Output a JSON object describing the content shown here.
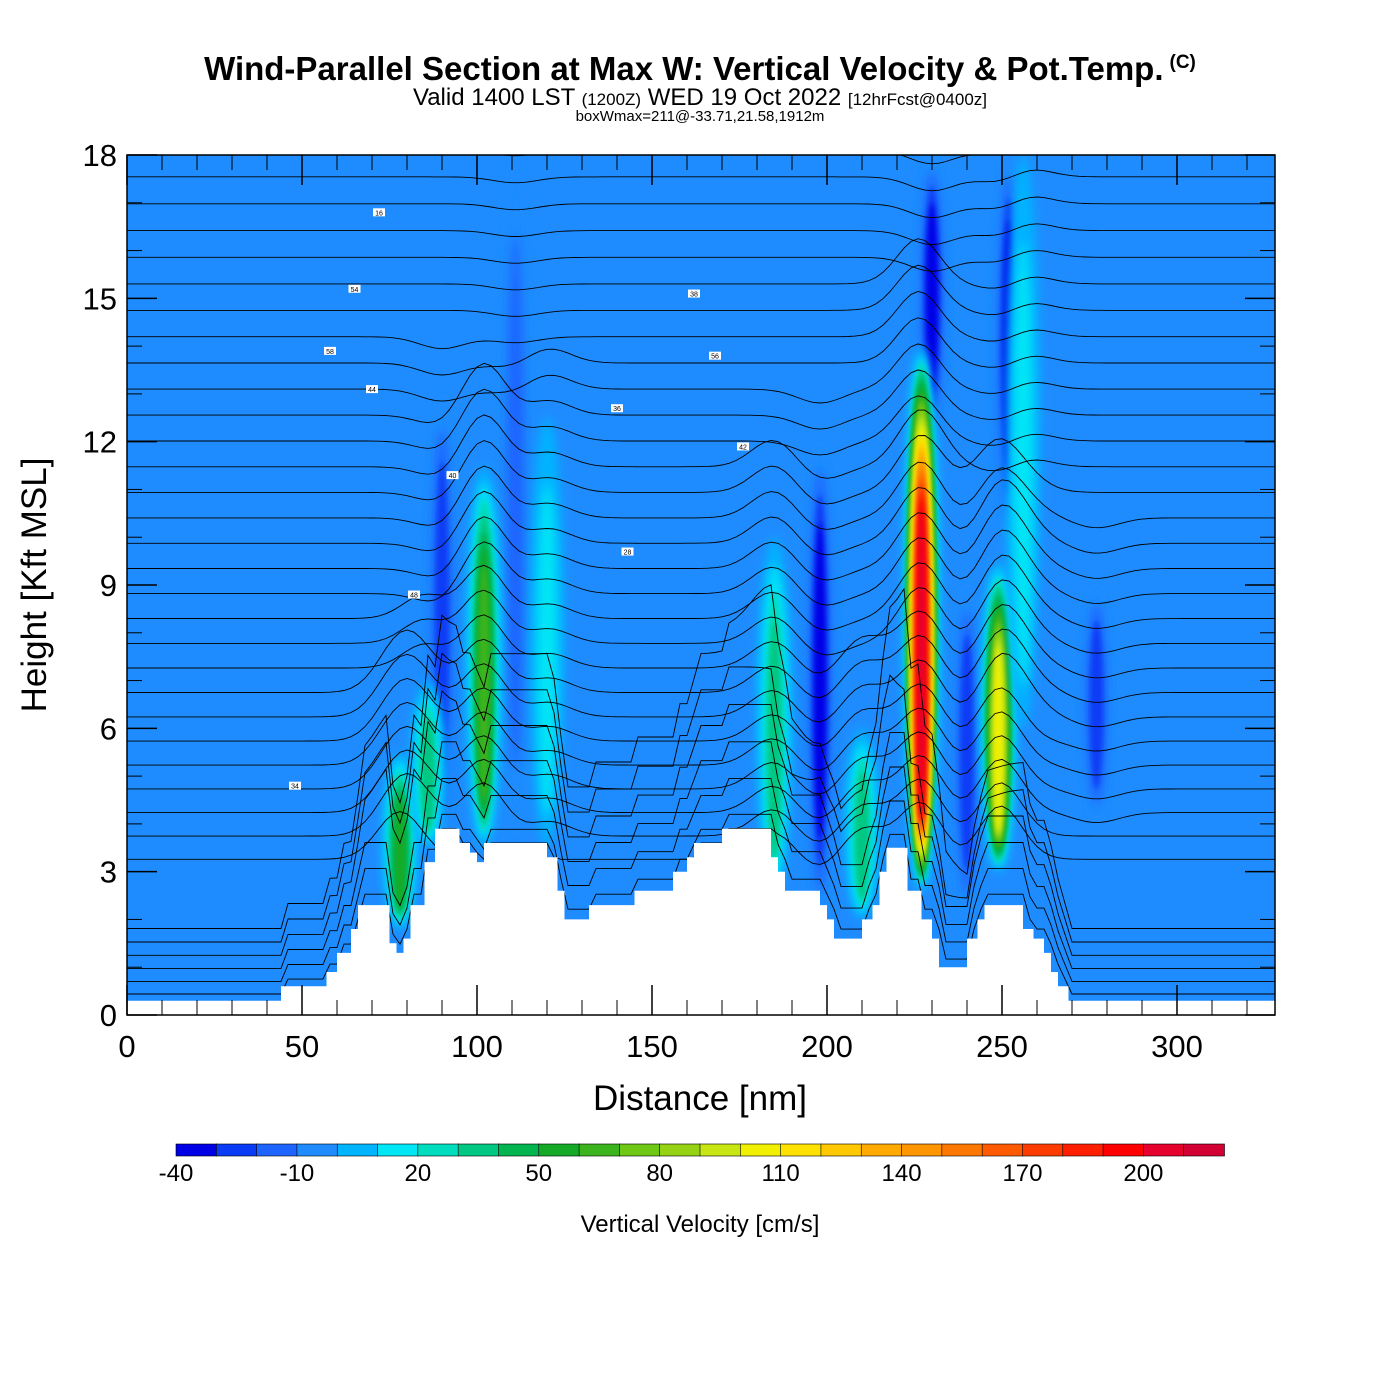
{
  "title": {
    "main": "Wind-Parallel Section at Max W: Vertical Velocity & Pot.Temp.",
    "copyright": "(C)",
    "valid_prefix": "Valid 1400 LST",
    "utc": "(1200Z)",
    "valid_date": "WED 19 Oct 2022",
    "forecast": "[12hrFcst@0400z]",
    "box_info": "boxWmax=211@-33.71,21.58,1912m"
  },
  "chart_data": {
    "type": "heatmap",
    "xlabel": "Distance [nm]",
    "ylabel": "Height [Kft MSL]",
    "xlim": [
      0,
      328
    ],
    "ylim": [
      0,
      18
    ],
    "x_ticks": [
      0,
      50,
      100,
      150,
      200,
      250,
      300
    ],
    "y_ticks": [
      0,
      3,
      6,
      9,
      12,
      15,
      18
    ],
    "colorbar": {
      "label": "Vertical Velocity [cm/s]",
      "ticks": [
        -40,
        -10,
        20,
        50,
        80,
        110,
        140,
        170,
        200
      ],
      "levels": [
        -40,
        -30,
        -20,
        -10,
        0,
        10,
        20,
        30,
        40,
        50,
        60,
        70,
        80,
        90,
        100,
        110,
        120,
        130,
        140,
        150,
        160,
        170,
        180,
        190,
        200,
        210,
        220
      ],
      "colors": [
        "#0000e6",
        "#0a3cf5",
        "#1e64ff",
        "#1e8cff",
        "#00b4ff",
        "#00e6f5",
        "#00dcbe",
        "#00c882",
        "#00b450",
        "#14aa28",
        "#3cb41e",
        "#6ec814",
        "#96d214",
        "#c8e614",
        "#f0f000",
        "#ffe100",
        "#ffc800",
        "#ffaa00",
        "#ff9600",
        "#ff7800",
        "#ff5a00",
        "#ff3c00",
        "#ff1e00",
        "#ff0000",
        "#e6002d",
        "#d20032"
      ]
    },
    "updrafts": [
      {
        "x": 78,
        "z_bottom": 1.8,
        "z_top": 5.5,
        "peak_w": 60
      },
      {
        "x": 86,
        "z_bottom": 3.5,
        "z_top": 7.0,
        "peak_w": 40
      },
      {
        "x": 102,
        "z_bottom": 3.5,
        "z_top": 11.5,
        "peak_w": 70
      },
      {
        "x": 120,
        "z_bottom": 3.5,
        "z_top": 12.5,
        "peak_w": 20
      },
      {
        "x": 185,
        "z_bottom": 2.5,
        "z_top": 10.0,
        "peak_w": 35
      },
      {
        "x": 210,
        "z_bottom": 2.0,
        "z_top": 6.0,
        "peak_w": 40
      },
      {
        "x": 227,
        "z_bottom": 2.6,
        "z_top": 14.0,
        "peak_w": 211
      },
      {
        "x": 249,
        "z_bottom": 3.0,
        "z_top": 9.5,
        "peak_w": 110
      },
      {
        "x": 256,
        "z_bottom": 6.0,
        "z_top": 18.0,
        "peak_w": 20
      }
    ],
    "downdrafts": [
      {
        "x": 90,
        "z_bottom": 3.5,
        "z_top": 13.0,
        "peak_w": -30
      },
      {
        "x": 111,
        "z_bottom": 3.5,
        "z_top": 18.0,
        "peak_w": -15
      },
      {
        "x": 198,
        "z_bottom": 2.0,
        "z_top": 12.0,
        "peak_w": -35
      },
      {
        "x": 230,
        "z_bottom": 12.0,
        "z_top": 18.0,
        "peak_w": -35
      },
      {
        "x": 240,
        "z_bottom": 2.0,
        "z_top": 9.0,
        "peak_w": -30
      },
      {
        "x": 252,
        "z_bottom": 10.0,
        "z_top": 18.0,
        "peak_w": -35
      },
      {
        "x": 277,
        "z_bottom": 4.0,
        "z_top": 9.0,
        "peak_w": -25
      }
    ],
    "terrain": [
      [
        0,
        0.3
      ],
      [
        43,
        0.3
      ],
      [
        44,
        0.6
      ],
      [
        55,
        0.6
      ],
      [
        57,
        0.9
      ],
      [
        60,
        1.3
      ],
      [
        64,
        1.8
      ],
      [
        66,
        2.3
      ],
      [
        72,
        2.3
      ],
      [
        75,
        1.5
      ],
      [
        77,
        1.3
      ],
      [
        79,
        1.6
      ],
      [
        81,
        2.3
      ],
      [
        85,
        3.2
      ],
      [
        88,
        3.9
      ],
      [
        91,
        3.9
      ],
      [
        95,
        3.6
      ],
      [
        98,
        3.4
      ],
      [
        100,
        3.2
      ],
      [
        102,
        3.6
      ],
      [
        118,
        3.6
      ],
      [
        120,
        3.3
      ],
      [
        123,
        2.6
      ],
      [
        125,
        2.0
      ],
      [
        130,
        2.0
      ],
      [
        132,
        2.3
      ],
      [
        143,
        2.3
      ],
      [
        145,
        2.6
      ],
      [
        152,
        2.6
      ],
      [
        156,
        3.0
      ],
      [
        160,
        3.3
      ],
      [
        162,
        3.6
      ],
      [
        168,
        3.6
      ],
      [
        170,
        3.9
      ],
      [
        180,
        3.9
      ],
      [
        184,
        3.3
      ],
      [
        186,
        3.0
      ],
      [
        188,
        2.6
      ],
      [
        196,
        2.6
      ],
      [
        198,
        2.3
      ],
      [
        200,
        2.0
      ],
      [
        202,
        1.6
      ],
      [
        208,
        1.6
      ],
      [
        210,
        2.0
      ],
      [
        213,
        2.3
      ],
      [
        215,
        3.0
      ],
      [
        217,
        3.5
      ],
      [
        220,
        3.5
      ],
      [
        223,
        2.6
      ],
      [
        227,
        2.0
      ],
      [
        230,
        1.6
      ],
      [
        232,
        1.0
      ],
      [
        238,
        1.0
      ],
      [
        240,
        1.6
      ],
      [
        243,
        2.0
      ],
      [
        245,
        2.3
      ],
      [
        252,
        2.3
      ],
      [
        256,
        1.8
      ],
      [
        259,
        1.6
      ],
      [
        262,
        1.3
      ],
      [
        264,
        0.9
      ],
      [
        266,
        0.6
      ],
      [
        269,
        0.3
      ],
      [
        328,
        0.3
      ]
    ],
    "theta_contour_labels": [
      "16",
      "54",
      "58",
      "44",
      "40",
      "48",
      "34",
      "28",
      "36",
      "38",
      "56",
      "42"
    ]
  }
}
